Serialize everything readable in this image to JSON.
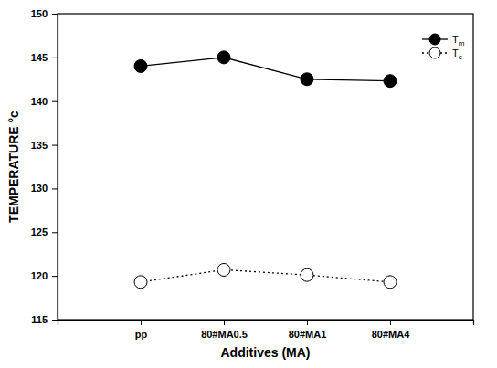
{
  "chart_data": {
    "type": "line",
    "x_label": "Additives (MA)",
    "y_label": "TEMPERATURE °c",
    "categories": [
      "pp",
      "80#MA0.5",
      "80#MA1",
      "80#MA4"
    ],
    "series": [
      {
        "name": "Tm",
        "color": "#000000",
        "marker": "filled-circle",
        "line_style": "solid",
        "values": [
          144.0,
          145.0,
          142.5,
          142.3
        ]
      },
      {
        "name": "Tc",
        "color": "#000000",
        "marker": "open-circle",
        "line_style": "dotted",
        "values": [
          119.3,
          120.7,
          120.1,
          119.3
        ]
      }
    ],
    "ylim": [
      115,
      150
    ],
    "yticks": [
      115,
      120,
      125,
      130,
      135,
      140,
      145,
      150
    ],
    "grid": false,
    "legend": "upper right"
  }
}
